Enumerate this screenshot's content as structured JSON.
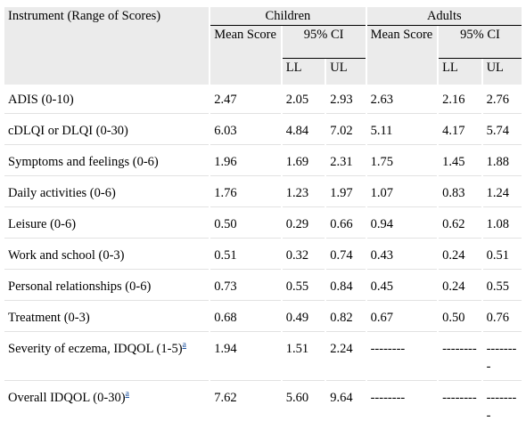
{
  "header": {
    "instrument_label": "Instrument (Range of Scores)",
    "children_label": "Children",
    "adults_label": "Adults",
    "mean_score_label": "Mean Score",
    "ci_label": "95% CI",
    "ll_label": "LL",
    "ul_label": "UL"
  },
  "rows": [
    {
      "name": "ADIS (0-10)",
      "footnote": "",
      "c_mean": "2.47",
      "c_ll": "2.05",
      "c_ul": "2.93",
      "a_mean": "2.63",
      "a_ll": "2.16",
      "a_ul": "2.76"
    },
    {
      "name": "cDLQI or DLQI (0-30)",
      "footnote": "",
      "c_mean": "6.03",
      "c_ll": "4.84",
      "c_ul": "7.02",
      "a_mean": "5.11",
      "a_ll": "4.17",
      "a_ul": "5.74"
    },
    {
      "name": "Symptoms and feelings (0-6)",
      "footnote": "",
      "c_mean": "1.96",
      "c_ll": "1.69",
      "c_ul": "2.31",
      "a_mean": "1.75",
      "a_ll": "1.45",
      "a_ul": "1.88"
    },
    {
      "name": "Daily activities (0-6)",
      "footnote": "",
      "c_mean": "1.76",
      "c_ll": "1.23",
      "c_ul": "1.97",
      "a_mean": "1.07",
      "a_ll": "0.83",
      "a_ul": "1.24"
    },
    {
      "name": "Leisure (0-6)",
      "footnote": "",
      "c_mean": "0.50",
      "c_ll": "0.29",
      "c_ul": "0.66",
      "a_mean": "0.94",
      "a_ll": "0.62",
      "a_ul": "1.08"
    },
    {
      "name": "Work and school (0-3)",
      "footnote": "",
      "c_mean": "0.51",
      "c_ll": "0.32",
      "c_ul": "0.74",
      "a_mean": "0.43",
      "a_ll": "0.24",
      "a_ul": "0.51"
    },
    {
      "name": "Personal relationships (0-6)",
      "footnote": "",
      "c_mean": "0.73",
      "c_ll": "0.55",
      "c_ul": "0.84",
      "a_mean": "0.45",
      "a_ll": "0.24",
      "a_ul": "0.55"
    },
    {
      "name": "Treatment (0-3)",
      "footnote": "",
      "c_mean": "0.68",
      "c_ll": "0.49",
      "c_ul": "0.82",
      "a_mean": "0.67",
      "a_ll": "0.50",
      "a_ul": "0.76"
    },
    {
      "name": "Severity of eczema, IDQOL (1-5)",
      "footnote": "a",
      "c_mean": "1.94",
      "c_ll": "1.51",
      "c_ul": "2.24",
      "a_mean": "--------",
      "a_ll": "--------",
      "a_ul": "--------"
    },
    {
      "name": "Overall IDQOL (0-30)",
      "footnote": "a",
      "c_mean": "7.62",
      "c_ll": "5.60",
      "c_ul": "9.64",
      "a_mean": "--------",
      "a_ll": "--------",
      "a_ul": "--------"
    }
  ]
}
